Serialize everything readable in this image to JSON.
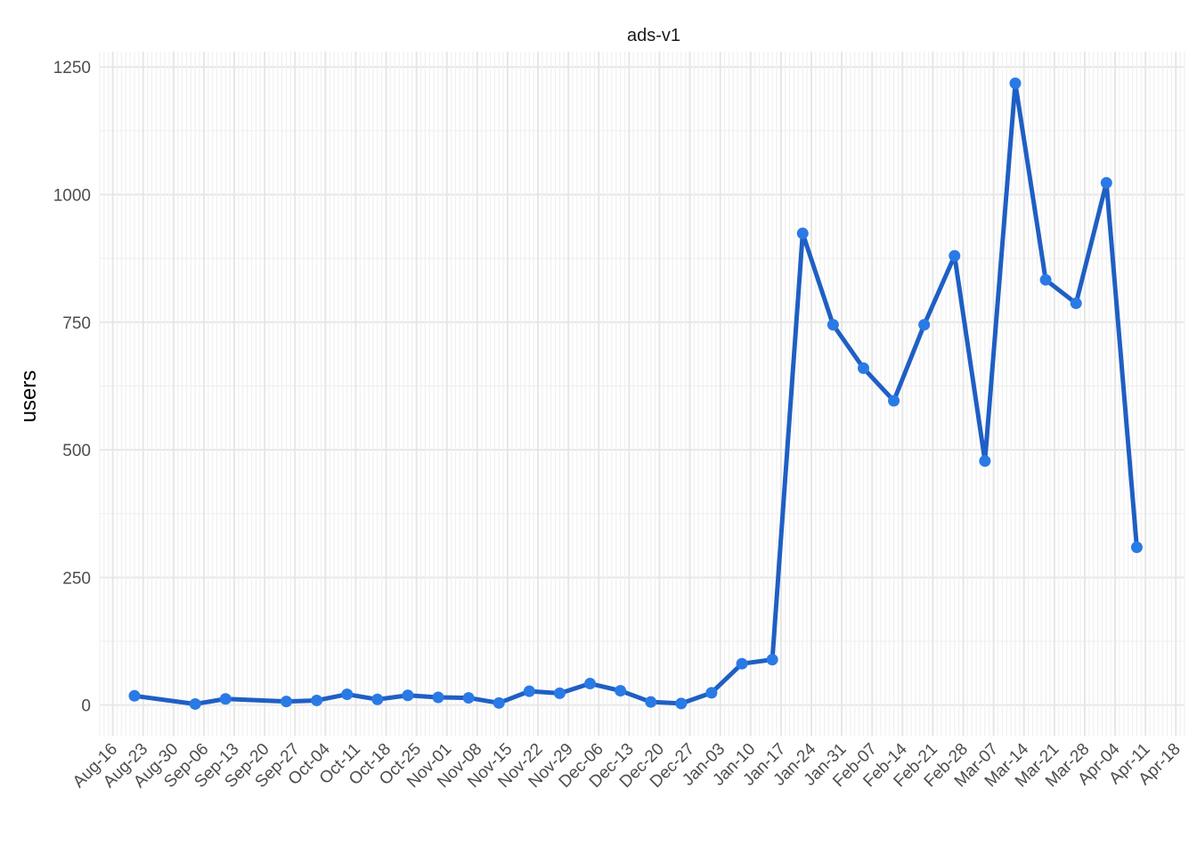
{
  "chart_data": {
    "type": "line",
    "title": "ads-v1",
    "xlabel": "",
    "ylabel": "users",
    "ylim": [
      -60,
      1280
    ],
    "y_ticks": [
      0,
      250,
      500,
      750,
      1000,
      1250
    ],
    "x_tick_labels": [
      "Aug-16",
      "Aug-23",
      "Aug-30",
      "Sep-06",
      "Sep-13",
      "Sep-20",
      "Sep-27",
      "Oct-04",
      "Oct-11",
      "Oct-18",
      "Oct-25",
      "Nov-01",
      "Nov-08",
      "Nov-15",
      "Nov-22",
      "Nov-29",
      "Dec-06",
      "Dec-13",
      "Dec-20",
      "Dec-27",
      "Jan-03",
      "Jan-10",
      "Jan-17",
      "Jan-24",
      "Jan-31",
      "Feb-07",
      "Feb-14",
      "Feb-21",
      "Feb-28",
      "Mar-07",
      "Mar-14",
      "Mar-21",
      "Mar-28",
      "Apr-04",
      "Apr-11",
      "Apr-18"
    ],
    "x_first_tick": "2020-08-16",
    "x_tick_interval_days": 7,
    "xlim": [
      "2020-08-13",
      "2021-04-20"
    ],
    "grid": true,
    "line_color": "#1f5fc4",
    "point_color": "#2a7ae6",
    "series": [
      {
        "x": [
          "2020-08-21",
          "2020-09-04",
          "2020-09-11",
          "2020-09-25",
          "2020-10-02",
          "2020-10-09",
          "2020-10-16",
          "2020-10-23",
          "2020-10-30",
          "2020-11-06",
          "2020-11-13",
          "2020-11-20",
          "2020-11-27",
          "2020-12-04",
          "2020-12-11",
          "2020-12-18",
          "2020-12-25",
          "2021-01-01",
          "2021-01-08",
          "2021-01-15",
          "2021-01-22",
          "2021-01-29",
          "2021-02-05",
          "2021-02-12",
          "2021-02-19",
          "2021-02-26",
          "2021-03-05",
          "2021-03-12",
          "2021-03-19",
          "2021-03-26",
          "2021-04-02",
          "2021-04-09"
        ],
        "values": [
          18,
          2,
          12,
          7,
          9,
          21,
          11,
          19,
          15,
          14,
          4,
          27,
          23,
          42,
          28,
          6,
          3,
          24,
          81,
          89,
          924,
          745,
          660,
          596,
          745,
          880,
          478,
          1218,
          833,
          787,
          1023,
          309
        ]
      }
    ]
  }
}
